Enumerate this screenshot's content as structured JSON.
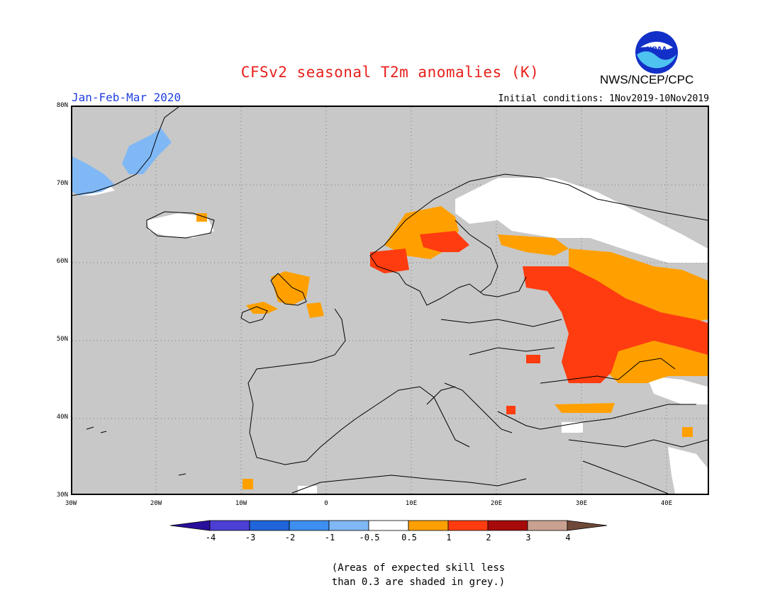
{
  "title": "CFSv2 seasonal T2m anomalies (K)",
  "agency": "NWS/NCEP/CPC",
  "logo_text": "NOAA",
  "season": "Jan-Feb-Mar 2020",
  "initial_conditions": "Initial conditions: 1Nov2019-10Nov2019",
  "lat_labels": [
    "80N",
    "70N",
    "60N",
    "50N",
    "40N",
    "30N"
  ],
  "lon_labels": [
    "30W",
    "20W",
    "10W",
    "0",
    "10E",
    "20E",
    "30E",
    "40E"
  ],
  "colorbar": {
    "labels": [
      "-4",
      "-3",
      "-2",
      "-1",
      "-0.5",
      "0.5",
      "1",
      "2",
      "3",
      "4"
    ],
    "colors": [
      "#2a0f9c",
      "#4b3fd4",
      "#1f64d9",
      "#3d8ff0",
      "#7fb8f5",
      "#ffffff",
      "#ffa000",
      "#ff3c0f",
      "#a60a0a",
      "#c9a191",
      "#6e4838"
    ]
  },
  "note_line1": "(Areas of expected skill less",
  "note_line2": "than 0.3 are shaded in grey.)",
  "colors": {
    "skill_grey": "#c8c8c8",
    "title_red": "#e8201c",
    "season_blue": "#1f3fe0"
  }
}
